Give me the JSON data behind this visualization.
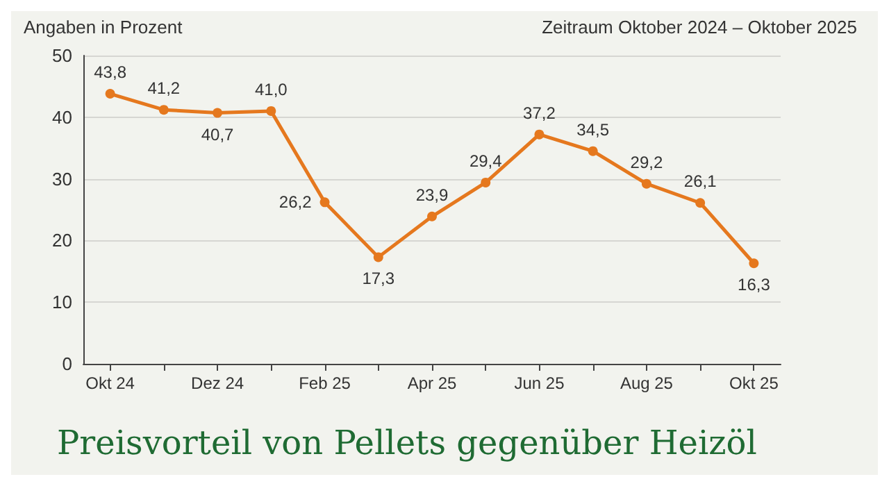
{
  "chart_data": {
    "type": "line",
    "title": "Preisvorteil von Pellets gegenüber Heizöl",
    "subtitle": "Zeitraum Oktober 2024 – Oktober 2025",
    "ylabel": "Angaben in Prozent",
    "categories": [
      "Okt 24",
      null,
      "Dez 24",
      null,
      "Feb 25",
      null,
      "Apr 25",
      null,
      "Jun 25",
      null,
      "Aug 25",
      null,
      "Okt 25"
    ],
    "series": [
      {
        "color": "#e5781e",
        "values": [
          43.8,
          41.2,
          40.7,
          41.0,
          26.2,
          17.3,
          23.9,
          29.4,
          37.2,
          34.5,
          29.2,
          26.1,
          16.3
        ],
        "value_labels": [
          "43,8",
          "41,2",
          "40,7",
          "41,0",
          "26,2",
          "17,3",
          "23,9",
          "29,4",
          "37,2",
          "34,5",
          "29,2",
          "26,1",
          "16,3"
        ]
      }
    ],
    "ylim": [
      0,
      50
    ],
    "yticks": [
      0,
      10,
      20,
      30,
      40,
      50
    ],
    "grid": "y",
    "marker": "circle",
    "line_style": "solid"
  }
}
